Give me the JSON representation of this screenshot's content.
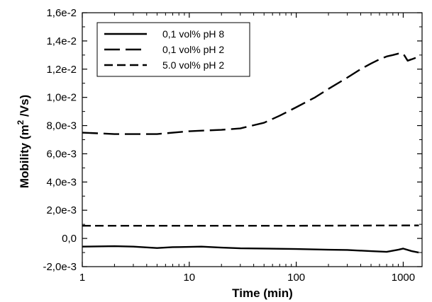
{
  "chart_data": {
    "type": "line",
    "xlabel": "Time (min)",
    "ylabel_main": "Mobility (m",
    "ylabel_sup": "2",
    "ylabel_tail": " /Vs)",
    "x_scale": "log",
    "xlim": [
      1,
      1500
    ],
    "ylim": [
      -0.002,
      0.016
    ],
    "grid": false,
    "legend_position": "top-left",
    "x_ticks": [
      1,
      10,
      100,
      1000
    ],
    "x_tick_labels": [
      "1",
      "10",
      "100",
      "1000"
    ],
    "y_ticks": [
      -0.002,
      0.0,
      0.002,
      0.004,
      0.006,
      0.008,
      0.01,
      0.012,
      0.014,
      0.016
    ],
    "y_tick_labels": [
      "-2,0e-3",
      "0,0",
      "2,0e-3",
      "4,0e-3",
      "6,0e-3",
      "8,0e-3",
      "1,0e-2",
      "1,2e-2",
      "1,4e-2",
      "1,6e-2"
    ],
    "series": [
      {
        "name": "0,1 vol% pH 8",
        "line_style": "solid",
        "points": [
          [
            1,
            -0.00058
          ],
          [
            2,
            -0.00055
          ],
          [
            3,
            -0.00058
          ],
          [
            5,
            -0.00068
          ],
          [
            7,
            -0.00062
          ],
          [
            10,
            -0.0006
          ],
          [
            13,
            -0.00058
          ],
          [
            20,
            -0.00065
          ],
          [
            30,
            -0.0007
          ],
          [
            50,
            -0.00072
          ],
          [
            100,
            -0.00075
          ],
          [
            200,
            -0.0008
          ],
          [
            300,
            -0.00082
          ],
          [
            500,
            -0.0009
          ],
          [
            700,
            -0.00095
          ],
          [
            900,
            -0.0008
          ],
          [
            1000,
            -0.00072
          ],
          [
            1200,
            -0.0009
          ],
          [
            1400,
            -0.001
          ]
        ]
      },
      {
        "name": "0,1 vol% pH 2",
        "line_style": "dashed",
        "points": [
          [
            1,
            0.0075
          ],
          [
            2,
            0.0074
          ],
          [
            5,
            0.0074
          ],
          [
            10,
            0.0076
          ],
          [
            20,
            0.0077
          ],
          [
            30,
            0.0078
          ],
          [
            50,
            0.0082
          ],
          [
            70,
            0.0087
          ],
          [
            100,
            0.0093
          ],
          [
            150,
            0.01
          ],
          [
            200,
            0.0106
          ],
          [
            300,
            0.0114
          ],
          [
            400,
            0.012
          ],
          [
            500,
            0.0124
          ],
          [
            600,
            0.0127
          ],
          [
            700,
            0.0129
          ],
          [
            800,
            0.013
          ],
          [
            900,
            0.0131
          ],
          [
            1000,
            0.0131
          ],
          [
            1100,
            0.0126
          ],
          [
            1200,
            0.0127
          ],
          [
            1300,
            0.0128
          ],
          [
            1400,
            0.0129
          ]
        ]
      },
      {
        "name": "5.0 vol% pH 2",
        "line_style": "dashed",
        "points": [
          [
            1,
            0.0009
          ],
          [
            10,
            0.0009
          ],
          [
            100,
            0.0009
          ],
          [
            1000,
            0.00092
          ],
          [
            1400,
            0.00092
          ]
        ]
      }
    ]
  }
}
